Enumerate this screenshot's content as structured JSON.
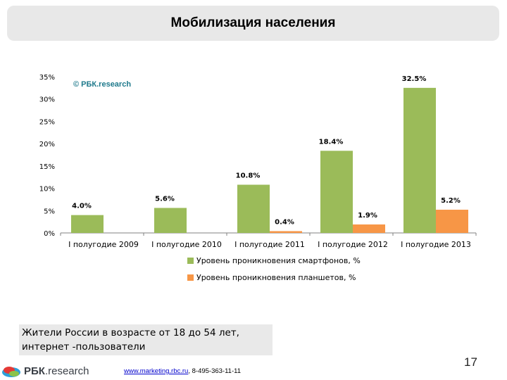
{
  "page": {
    "title": "Мобилизация населения",
    "footnote": "Жители России в возрасте от 18 до 54 лет, интернет -пользователи",
    "logo_name": "РБК",
    "logo_suffix": ".research",
    "contact_link": "www.marketing.rbc.ru",
    "contact_phone": ", 8-495-363-11-11",
    "page_number": "17"
  },
  "colors": {
    "green": "#9bbb59",
    "orange": "#f79646",
    "watermark": "#1f7a8c"
  },
  "chart_data": {
    "type": "bar",
    "watermark": "© РБК.research",
    "categories": [
      "I полугодие 2009",
      "I полугодие 2010",
      "I полугодие 2011",
      "I полугодие 2012",
      "I полугодие 2013"
    ],
    "series": [
      {
        "name": "Уровень проникновения смартфонов, %",
        "values": [
          4.0,
          5.6,
          10.8,
          18.4,
          32.5
        ],
        "labels": [
          "4.0%",
          "5.6%",
          "10.8%",
          "18.4%",
          "32.5%"
        ]
      },
      {
        "name": "Уровень проникновения планшетов, %",
        "values": [
          null,
          null,
          0.4,
          1.9,
          5.2
        ],
        "labels": [
          null,
          null,
          "0.4%",
          "1.9%",
          "5.2%"
        ]
      }
    ],
    "ylim": [
      0,
      35
    ],
    "yticks": [
      0,
      5,
      10,
      15,
      20,
      25,
      30,
      35
    ],
    "ytick_labels": [
      "0%",
      "5%",
      "10%",
      "15%",
      "20%",
      "25%",
      "30%",
      "35%"
    ],
    "legend_position": "bottom"
  }
}
